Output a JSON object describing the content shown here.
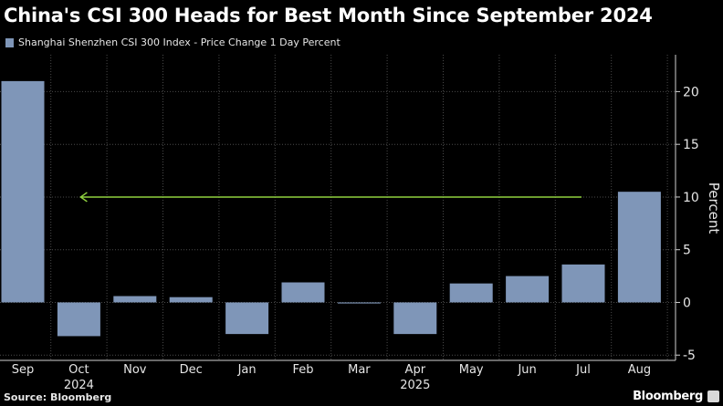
{
  "header": {
    "title": "China's CSI 300 Heads for Best Month Since September 2024",
    "legend_label": "Shanghai Shenzhen CSI 300 Index - Price Change 1 Day Percent"
  },
  "footer": {
    "source": "Source: Bloomberg",
    "brand": "Bloomberg"
  },
  "chart_data": {
    "type": "bar",
    "categories": [
      "Sep",
      "Oct",
      "Nov",
      "Dec",
      "Jan",
      "Feb",
      "Mar",
      "Apr",
      "May",
      "Jun",
      "Jul",
      "Aug"
    ],
    "year_labels": [
      {
        "label": "2024",
        "category": "Oct"
      },
      {
        "label": "2025",
        "category": "Apr"
      }
    ],
    "series": [
      {
        "values": [
          21.0,
          -3.2,
          0.6,
          0.5,
          -3.0,
          1.9,
          -0.1,
          -3.0,
          1.8,
          2.5,
          3.6,
          10.5
        ]
      }
    ],
    "ylabel": "Percent",
    "yticks": [
      20,
      15,
      10,
      5,
      0,
      -5
    ],
    "ylim": [
      -5.5,
      23.5
    ],
    "axis_side": "right",
    "grid": true,
    "annotation": {
      "type": "arrow",
      "value": 10,
      "from": "Jul",
      "to": "Oct"
    },
    "colors": {
      "bar": "#7f96b8",
      "arrow": "#8fd13f",
      "grid": "#4a4a4a",
      "axis": "#d0d0d0"
    }
  }
}
